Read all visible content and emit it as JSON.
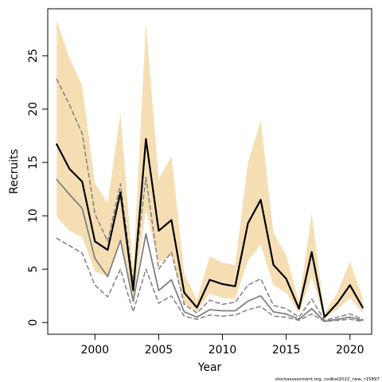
{
  "chart_data": {
    "type": "line",
    "title": "",
    "xlabel": "Year",
    "ylabel": "Recruits",
    "footnote": "stockassessment.org, codkat2022_new, r15897",
    "xlim": [
      1996.3,
      2021.7
    ],
    "ylim": [
      -1.1,
      29.4
    ],
    "x_ticks": [
      2000,
      2005,
      2010,
      2015,
      2020
    ],
    "y_ticks": [
      0,
      5,
      10,
      15,
      20,
      25
    ],
    "grid": false,
    "legend": "none",
    "colors": {
      "band": "#f5deb3",
      "main": "#000000",
      "secondary": "#808080"
    },
    "x": [
      1997,
      1998,
      1999,
      2000,
      2001,
      2002,
      2003,
      2004,
      2005,
      2006,
      2007,
      2008,
      2009,
      2010,
      2011,
      2012,
      2013,
      2014,
      2015,
      2016,
      2017,
      2018,
      2019,
      2020,
      2021
    ],
    "series": [
      {
        "values": [
          16.7,
          14.4,
          13.2,
          7.6,
          6.8,
          12.2,
          3.0,
          17.2,
          8.6,
          9.6,
          2.8,
          1.4,
          4.0,
          3.6,
          3.4,
          9.3,
          11.5,
          5.4,
          4.1,
          1.3,
          6.6,
          0.5,
          1.8,
          3.5,
          1.4
        ],
        "lower": [
          9.9,
          8.6,
          8.0,
          4.8,
          4.3,
          7.8,
          2.0,
          10.6,
          5.6,
          6.3,
          1.8,
          1.0,
          2.7,
          2.3,
          2.2,
          5.8,
          7.3,
          3.5,
          2.8,
          0.9,
          4.3,
          0.4,
          1.2,
          2.3,
          0.9
        ],
        "upper": [
          28.3,
          24.8,
          22.2,
          13.0,
          11.2,
          19.6,
          4.7,
          28.0,
          13.4,
          15.6,
          4.6,
          2.1,
          6.2,
          5.6,
          5.4,
          15.0,
          18.9,
          8.4,
          6.3,
          1.9,
          10.2,
          0.8,
          2.8,
          5.7,
          2.3
        ]
      },
      {
        "values": [
          13.4,
          12.0,
          10.7,
          6.0,
          4.3,
          7.7,
          2.0,
          8.3,
          3.0,
          4.0,
          1.0,
          0.5,
          1.2,
          1.1,
          1.1,
          2.0,
          2.5,
          1.0,
          0.8,
          0.3,
          1.3,
          0.1,
          0.3,
          0.5,
          0.2
        ],
        "lower": [
          7.9,
          7.2,
          6.5,
          3.5,
          2.4,
          5.0,
          1.0,
          5.0,
          1.8,
          2.5,
          0.6,
          0.3,
          0.7,
          0.6,
          0.7,
          1.2,
          1.5,
          0.6,
          0.5,
          0.2,
          0.8,
          0.1,
          0.2,
          0.3,
          0.1
        ],
        "upper": [
          22.8,
          20.4,
          17.7,
          10.2,
          7.6,
          13.0,
          3.7,
          13.6,
          5.0,
          6.6,
          1.7,
          0.9,
          2.1,
          1.7,
          1.9,
          3.5,
          4.1,
          1.6,
          1.3,
          0.5,
          2.2,
          0.2,
          0.5,
          0.8,
          0.3
        ]
      }
    ]
  }
}
